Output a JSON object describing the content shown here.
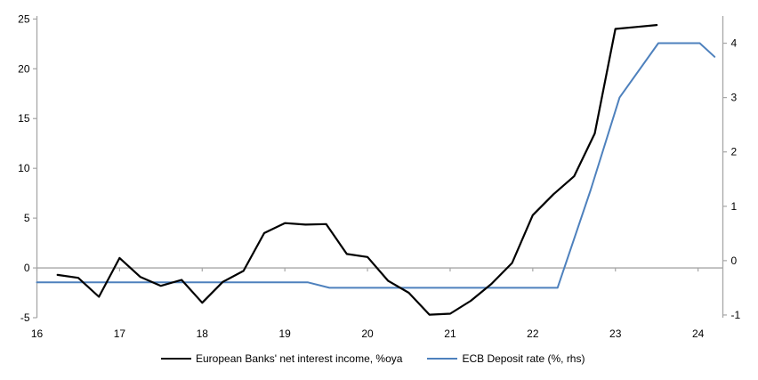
{
  "chart_data": {
    "type": "line",
    "title": "",
    "x_axis": {
      "min": 16,
      "max": 24.3,
      "ticks": [
        16,
        17,
        18,
        19,
        20,
        21,
        22,
        23,
        24
      ],
      "labels": [
        "16",
        "17",
        "18",
        "19",
        "20",
        "21",
        "22",
        "23",
        "24"
      ]
    },
    "left_axis": {
      "min": -5,
      "max": 25.3,
      "ticks": [
        -5,
        0,
        5,
        10,
        15,
        20,
        25
      ],
      "labels": [
        "-5",
        "0",
        "5",
        "10",
        "15",
        "20",
        "25"
      ]
    },
    "right_axis": {
      "min": -1.05,
      "max": 4.5,
      "ticks": [
        -1,
        0,
        1,
        2,
        3,
        4
      ],
      "labels": [
        "-1",
        "0",
        "1",
        "2",
        "3",
        "4"
      ]
    },
    "zero_gridline": true,
    "grid": "none",
    "legend_position": "bottom",
    "series": [
      {
        "id": "ecb-deposit-rate",
        "name": "ECB Deposit rate (%, rhs)",
        "axis": "right",
        "color": "#4E81BD",
        "width": 2,
        "x": [
          16.0,
          19.28,
          19.54,
          22.3,
          22.7,
          23.05,
          23.52,
          24.02,
          24.2
        ],
        "values": [
          -0.4,
          -0.4,
          -0.5,
          -0.5,
          1.3,
          3.0,
          4.0,
          4.0,
          3.75
        ]
      },
      {
        "id": "european-banks-nii",
        "name": "European Banks' net interest income, %oya",
        "axis": "left",
        "color": "#000000",
        "width": 2.2,
        "x": [
          16.25,
          16.5,
          16.75,
          17.0,
          17.25,
          17.5,
          17.75,
          18.0,
          18.25,
          18.5,
          18.75,
          19.0,
          19.25,
          19.5,
          19.75,
          20.0,
          20.25,
          20.5,
          20.75,
          21.0,
          21.25,
          21.5,
          21.75,
          22.0,
          22.25,
          22.5,
          22.75,
          23.0,
          23.25,
          23.5
        ],
        "values": [
          -0.7,
          -1.0,
          -2.9,
          1.0,
          -0.9,
          -1.8,
          -1.2,
          -3.5,
          -1.4,
          -0.3,
          3.5,
          4.5,
          4.35,
          4.4,
          1.4,
          1.1,
          -1.3,
          -2.5,
          -4.7,
          -4.6,
          -3.3,
          -1.6,
          0.5,
          5.3,
          7.4,
          9.2,
          13.5,
          24.0,
          24.2,
          24.4
        ]
      }
    ]
  },
  "legend": {
    "items": [
      {
        "label": "European Banks' net interest income, %oya",
        "color": "#000000"
      },
      {
        "label": "ECB Deposit rate (%, rhs)",
        "color": "#4E81BD"
      }
    ]
  },
  "colors": {
    "background": "#ffffff",
    "axis": "#a6a6a6",
    "text": "#000000",
    "nii_line": "#000000",
    "deposit_rate_line": "#4E81BD"
  }
}
